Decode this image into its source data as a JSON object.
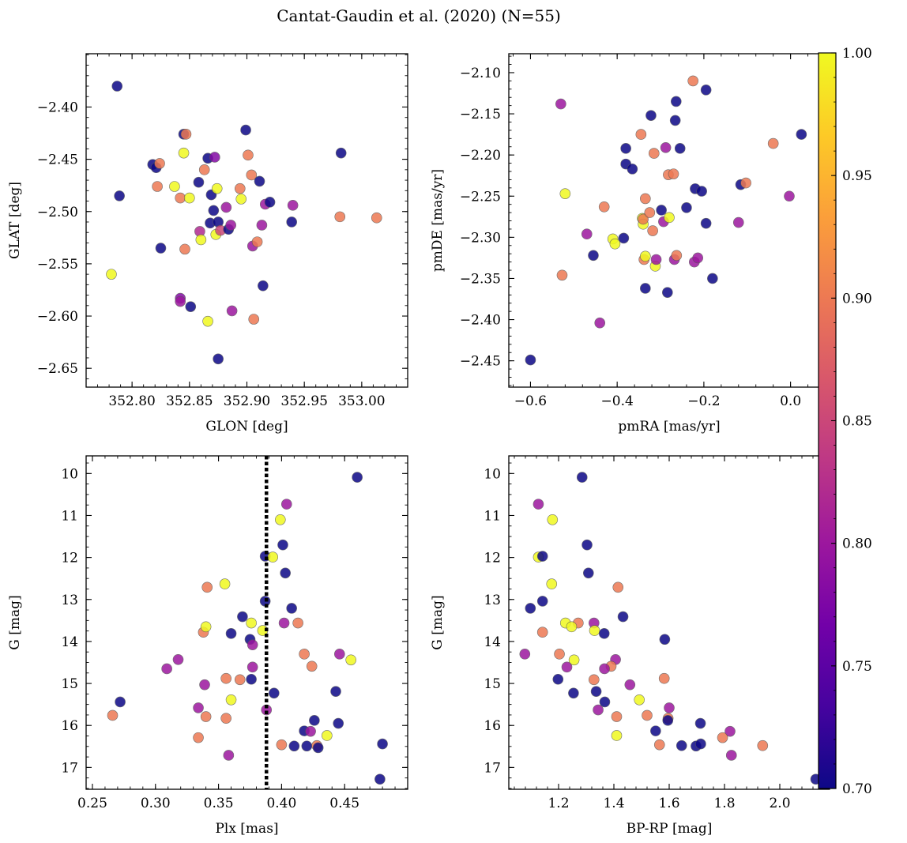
{
  "figure_title": "Cantat-Gaudin et al. (2020) (N=55)",
  "colorbar": {
    "colormap": "plasma",
    "range": [
      0.7,
      1.0
    ],
    "ticks": [
      "0.70",
      "0.75",
      "0.80",
      "0.85",
      "0.90",
      "0.95",
      "1.00"
    ],
    "colormap_stops": [
      "#0d0887",
      "#46039f",
      "#7201a8",
      "#9c179e",
      "#bd3786",
      "#d8576b",
      "#ed7953",
      "#fb9f3a",
      "#fdca26",
      "#f0f921"
    ]
  },
  "chart_data": [
    {
      "id": "glon_glat",
      "type": "scatter",
      "xlabel": "GLON [deg]",
      "ylabel": "GLAT [deg]",
      "xlim": [
        352.76,
        353.04
      ],
      "ylim": [
        -2.668,
        -2.349
      ],
      "xticks": [
        352.8,
        352.85,
        352.9,
        352.95,
        353.0
      ],
      "xtick_labels": [
        "352.80",
        "352.85",
        "352.90",
        "352.95",
        "353.00"
      ],
      "yticks": [
        -2.4,
        -2.45,
        -2.5,
        -2.55,
        -2.6,
        -2.65
      ],
      "ytick_labels": [
        "−2.40",
        "−2.45",
        "−2.50",
        "−2.55",
        "−2.60",
        "−2.65"
      ],
      "points": [
        [
          352.787,
          -2.38,
          0.7
        ],
        [
          352.789,
          -2.485,
          0.7
        ],
        [
          352.782,
          -2.56,
          1.0
        ],
        [
          352.818,
          -2.455,
          0.7
        ],
        [
          352.821,
          -2.458,
          0.7
        ],
        [
          352.822,
          -2.476,
          0.9
        ],
        [
          352.824,
          -2.454,
          0.9
        ],
        [
          352.825,
          -2.535,
          0.7
        ],
        [
          352.837,
          -2.476,
          1.0
        ],
        [
          352.842,
          -2.487,
          0.9
        ],
        [
          352.842,
          -2.583,
          0.78
        ],
        [
          352.842,
          -2.586,
          0.8
        ],
        [
          352.845,
          -2.426,
          0.7
        ],
        [
          352.845,
          -2.444,
          1.0
        ],
        [
          352.846,
          -2.536,
          0.9
        ],
        [
          352.847,
          -2.426,
          0.9
        ],
        [
          352.85,
          -2.487,
          1.0
        ],
        [
          352.851,
          -2.591,
          0.7
        ],
        [
          352.858,
          -2.472,
          0.7
        ],
        [
          352.859,
          -2.519,
          0.82
        ],
        [
          352.86,
          -2.527,
          1.0
        ],
        [
          352.863,
          -2.46,
          0.9
        ],
        [
          352.866,
          -2.449,
          0.7
        ],
        [
          352.866,
          -2.605,
          1.0
        ],
        [
          352.868,
          -2.511,
          0.7
        ],
        [
          352.869,
          -2.484,
          0.7
        ],
        [
          352.871,
          -2.499,
          0.7
        ],
        [
          352.872,
          -2.448,
          0.78
        ],
        [
          352.873,
          -2.522,
          1.0
        ],
        [
          352.874,
          -2.478,
          1.0
        ],
        [
          352.875,
          -2.51,
          0.7
        ],
        [
          352.875,
          -2.641,
          0.7
        ],
        [
          352.877,
          -2.518,
          0.85
        ],
        [
          352.882,
          -2.496,
          0.8
        ],
        [
          352.884,
          -2.517,
          0.7
        ],
        [
          352.886,
          -2.513,
          0.8
        ],
        [
          352.887,
          -2.595,
          0.8
        ],
        [
          352.894,
          -2.478,
          0.9
        ],
        [
          352.895,
          -2.488,
          1.0
        ],
        [
          352.899,
          -2.422,
          0.7
        ],
        [
          352.901,
          -2.446,
          0.9
        ],
        [
          352.904,
          -2.465,
          0.9
        ],
        [
          352.905,
          -2.533,
          0.8
        ],
        [
          352.906,
          -2.603,
          0.9
        ],
        [
          352.909,
          -2.529,
          0.9
        ],
        [
          352.911,
          -2.471,
          0.7
        ],
        [
          352.913,
          -2.513,
          0.8
        ],
        [
          352.914,
          -2.571,
          0.7
        ],
        [
          352.916,
          -2.493,
          0.8
        ],
        [
          352.92,
          -2.491,
          0.7
        ],
        [
          352.94,
          -2.494,
          0.8
        ],
        [
          352.939,
          -2.51,
          0.7
        ],
        [
          352.982,
          -2.444,
          0.7
        ],
        [
          352.981,
          -2.505,
          0.9
        ],
        [
          353.013,
          -2.506,
          0.9
        ]
      ]
    },
    {
      "id": "pmra_pmde",
      "type": "scatter",
      "xlabel": "pmRA [mas/yr]",
      "ylabel": "pmDE [mas/yr]",
      "xlim": [
        -0.65,
        0.09
      ],
      "ylim": [
        -2.482,
        -2.077
      ],
      "xticks": [
        -0.6,
        -0.4,
        -0.2,
        0.0
      ],
      "xtick_labels": [
        "−0.6",
        "−0.4",
        "−0.2",
        "0.0"
      ],
      "yticks": [
        -2.1,
        -2.15,
        -2.2,
        -2.25,
        -2.3,
        -2.35,
        -2.4,
        -2.45
      ],
      "ytick_labels": [
        "−2.10",
        "−2.15",
        "−2.20",
        "−2.25",
        "−2.30",
        "−2.35",
        "−2.40",
        "−2.45"
      ],
      "points": [
        [
          -0.6,
          -2.449,
          0.7
        ],
        [
          -0.53,
          -2.138,
          0.8
        ],
        [
          -0.527,
          -2.346,
          0.9
        ],
        [
          -0.52,
          -2.247,
          1.0
        ],
        [
          -0.47,
          -2.296,
          0.8
        ],
        [
          -0.455,
          -2.322,
          0.7
        ],
        [
          -0.44,
          -2.404,
          0.8
        ],
        [
          -0.43,
          -2.263,
          0.9
        ],
        [
          -0.41,
          -2.302,
          1.0
        ],
        [
          -0.405,
          -2.308,
          1.0
        ],
        [
          -0.385,
          -2.301,
          0.7
        ],
        [
          -0.38,
          -2.192,
          0.7
        ],
        [
          -0.38,
          -2.211,
          0.7
        ],
        [
          -0.365,
          -2.217,
          0.7
        ],
        [
          -0.345,
          -2.175,
          0.9
        ],
        [
          -0.342,
          -2.277,
          1.0
        ],
        [
          -0.34,
          -2.284,
          1.0
        ],
        [
          -0.34,
          -2.278,
          0.9
        ],
        [
          -0.338,
          -2.327,
          0.9
        ],
        [
          -0.335,
          -2.323,
          1.0
        ],
        [
          -0.335,
          -2.362,
          0.7
        ],
        [
          -0.335,
          -2.253,
          0.9
        ],
        [
          -0.325,
          -2.27,
          0.9
        ],
        [
          -0.322,
          -2.152,
          0.7
        ],
        [
          -0.318,
          -2.292,
          0.9
        ],
        [
          -0.315,
          -2.198,
          0.9
        ],
        [
          -0.312,
          -2.335,
          1.0
        ],
        [
          -0.31,
          -2.327,
          0.8
        ],
        [
          -0.298,
          -2.267,
          0.7
        ],
        [
          -0.293,
          -2.281,
          0.8
        ],
        [
          -0.288,
          -2.191,
          0.8
        ],
        [
          -0.284,
          -2.367,
          0.7
        ],
        [
          -0.282,
          -2.224,
          0.9
        ],
        [
          -0.28,
          -2.276,
          1.0
        ],
        [
          -0.27,
          -2.223,
          0.9
        ],
        [
          -0.268,
          -2.327,
          0.8
        ],
        [
          -0.266,
          -2.158,
          0.7
        ],
        [
          -0.264,
          -2.135,
          0.7
        ],
        [
          -0.263,
          -2.322,
          0.9
        ],
        [
          -0.255,
          -2.192,
          0.7
        ],
        [
          -0.24,
          -2.264,
          0.7
        ],
        [
          -0.225,
          -2.11,
          0.9
        ],
        [
          -0.222,
          -2.33,
          0.8
        ],
        [
          -0.22,
          -2.241,
          0.7
        ],
        [
          -0.214,
          -2.325,
          0.8
        ],
        [
          -0.205,
          -2.244,
          0.7
        ],
        [
          -0.195,
          -2.121,
          0.7
        ],
        [
          -0.195,
          -2.283,
          0.7
        ],
        [
          -0.18,
          -2.35,
          0.7
        ],
        [
          -0.12,
          -2.282,
          0.8
        ],
        [
          -0.115,
          -2.236,
          0.7
        ],
        [
          -0.103,
          -2.234,
          0.9
        ],
        [
          -0.04,
          -2.186,
          0.9
        ],
        [
          -0.003,
          -2.25,
          0.8
        ],
        [
          0.025,
          -2.175,
          0.7
        ]
      ]
    },
    {
      "id": "plx_g",
      "type": "scatter",
      "xlabel": "Plx [mas]",
      "ylabel": "G [mag]",
      "xlim": [
        0.245,
        0.5
      ],
      "ylim": [
        17.52,
        9.58
      ],
      "y_inverted": true,
      "vline": {
        "x": 0.388,
        "style": "dotted"
      },
      "xticks": [
        0.25,
        0.3,
        0.35,
        0.4,
        0.45
      ],
      "xtick_labels": [
        "0.25",
        "0.30",
        "0.35",
        "0.40",
        "0.45"
      ],
      "yticks": [
        10,
        11,
        12,
        13,
        14,
        15,
        16,
        17
      ],
      "ytick_labels": [
        "10",
        "11",
        "12",
        "13",
        "14",
        "15",
        "16",
        "17"
      ],
      "points": [
        [
          0.266,
          15.76,
          0.9
        ],
        [
          0.272,
          15.44,
          0.7
        ],
        [
          0.309,
          14.65,
          0.8
        ],
        [
          0.318,
          14.43,
          0.8
        ],
        [
          0.334,
          15.58,
          0.8
        ],
        [
          0.334,
          16.29,
          0.9
        ],
        [
          0.338,
          13.78,
          0.9
        ],
        [
          0.339,
          15.03,
          0.8
        ],
        [
          0.34,
          13.65,
          1.0
        ],
        [
          0.34,
          15.79,
          0.9
        ],
        [
          0.341,
          12.71,
          0.9
        ],
        [
          0.355,
          12.63,
          1.0
        ],
        [
          0.356,
          14.88,
          0.9
        ],
        [
          0.356,
          15.83,
          0.9
        ],
        [
          0.358,
          16.71,
          0.8
        ],
        [
          0.36,
          13.81,
          0.7
        ],
        [
          0.36,
          15.39,
          1.0
        ],
        [
          0.367,
          14.91,
          0.9
        ],
        [
          0.369,
          13.41,
          0.7
        ],
        [
          0.375,
          13.95,
          0.7
        ],
        [
          0.376,
          13.56,
          1.0
        ],
        [
          0.376,
          14.9,
          0.7
        ],
        [
          0.377,
          14.61,
          0.8
        ],
        [
          0.377,
          14.08,
          0.8
        ],
        [
          0.385,
          13.74,
          1.0
        ],
        [
          0.387,
          11.97,
          0.7
        ],
        [
          0.387,
          13.04,
          0.7
        ],
        [
          0.388,
          15.63,
          0.8
        ],
        [
          0.393,
          11.99,
          1.0
        ],
        [
          0.394,
          15.23,
          0.7
        ],
        [
          0.399,
          11.1,
          1.0
        ],
        [
          0.4,
          16.46,
          0.9
        ],
        [
          0.401,
          11.7,
          0.7
        ],
        [
          0.402,
          13.56,
          0.8
        ],
        [
          0.403,
          12.37,
          0.7
        ],
        [
          0.404,
          10.73,
          0.8
        ],
        [
          0.408,
          13.21,
          0.7
        ],
        [
          0.41,
          16.49,
          0.7
        ],
        [
          0.413,
          13.56,
          0.9
        ],
        [
          0.418,
          14.3,
          0.9
        ],
        [
          0.418,
          16.13,
          0.7
        ],
        [
          0.42,
          16.49,
          0.7
        ],
        [
          0.423,
          16.14,
          0.8
        ],
        [
          0.424,
          14.59,
          0.9
        ],
        [
          0.426,
          15.88,
          0.7
        ],
        [
          0.428,
          16.48,
          0.9
        ],
        [
          0.429,
          16.53,
          0.7
        ],
        [
          0.436,
          16.24,
          1.0
        ],
        [
          0.443,
          15.19,
          0.7
        ],
        [
          0.445,
          15.95,
          0.7
        ],
        [
          0.446,
          14.3,
          0.8
        ],
        [
          0.455,
          14.44,
          1.0
        ],
        [
          0.46,
          10.09,
          0.7
        ],
        [
          0.478,
          17.28,
          0.7
        ],
        [
          0.48,
          16.44,
          0.7
        ]
      ]
    },
    {
      "id": "bprp_g",
      "type": "scatter",
      "xlabel": "BP-RP [mag]",
      "ylabel": "G [mag]",
      "xlim": [
        1.02,
        2.18
      ],
      "ylim": [
        17.52,
        9.58
      ],
      "y_inverted": true,
      "xticks": [
        1.2,
        1.4,
        1.6,
        1.8,
        2.0
      ],
      "xtick_labels": [
        "1.2",
        "1.4",
        "1.6",
        "1.8",
        "2.0"
      ],
      "yticks": [
        10,
        11,
        12,
        13,
        14,
        15,
        16,
        17
      ],
      "ytick_labels": [
        "10",
        "11",
        "12",
        "13",
        "14",
        "15",
        "16",
        "17"
      ],
      "points": [
        [
          1.285,
          10.09,
          0.7
        ],
        [
          1.127,
          10.73,
          0.8
        ],
        [
          1.178,
          11.1,
          1.0
        ],
        [
          1.303,
          11.7,
          0.7
        ],
        [
          1.127,
          11.99,
          1.0
        ],
        [
          1.142,
          11.97,
          0.7
        ],
        [
          1.308,
          12.37,
          0.7
        ],
        [
          1.175,
          12.63,
          1.0
        ],
        [
          1.415,
          12.71,
          0.9
        ],
        [
          1.142,
          13.04,
          0.7
        ],
        [
          1.098,
          13.21,
          0.7
        ],
        [
          1.433,
          13.41,
          0.7
        ],
        [
          1.225,
          13.56,
          1.0
        ],
        [
          1.271,
          13.56,
          0.9
        ],
        [
          1.328,
          13.56,
          0.8
        ],
        [
          1.247,
          13.65,
          1.0
        ],
        [
          1.33,
          13.74,
          1.0
        ],
        [
          1.142,
          13.78,
          0.9
        ],
        [
          1.365,
          13.81,
          0.7
        ],
        [
          1.584,
          13.95,
          0.7
        ],
        [
          1.078,
          14.3,
          0.8
        ],
        [
          1.203,
          14.3,
          0.9
        ],
        [
          1.406,
          14.43,
          0.8
        ],
        [
          1.256,
          14.44,
          1.0
        ],
        [
          1.39,
          14.59,
          0.9
        ],
        [
          1.23,
          14.61,
          0.8
        ],
        [
          1.366,
          14.65,
          0.8
        ],
        [
          1.582,
          14.88,
          0.9
        ],
        [
          1.198,
          14.9,
          0.7
        ],
        [
          1.328,
          14.91,
          0.9
        ],
        [
          1.458,
          15.03,
          0.8
        ],
        [
          1.336,
          15.19,
          0.7
        ],
        [
          1.254,
          15.23,
          0.7
        ],
        [
          1.492,
          15.39,
          1.0
        ],
        [
          1.367,
          15.44,
          0.7
        ],
        [
          1.6,
          15.58,
          0.8
        ],
        [
          1.343,
          15.63,
          0.8
        ],
        [
          1.41,
          15.79,
          0.9
        ],
        [
          1.52,
          15.76,
          0.9
        ],
        [
          1.596,
          15.83,
          0.9
        ],
        [
          1.595,
          15.88,
          0.7
        ],
        [
          1.713,
          15.95,
          0.7
        ],
        [
          1.82,
          16.14,
          0.8
        ],
        [
          1.551,
          16.13,
          0.7
        ],
        [
          1.41,
          16.24,
          1.0
        ],
        [
          1.793,
          16.29,
          0.9
        ],
        [
          1.565,
          16.46,
          0.9
        ],
        [
          1.645,
          16.48,
          0.7
        ],
        [
          1.697,
          16.49,
          0.7
        ],
        [
          1.938,
          16.48,
          0.9
        ],
        [
          1.714,
          16.44,
          0.7
        ],
        [
          1.825,
          16.71,
          0.8
        ],
        [
          2.13,
          17.28,
          0.7
        ]
      ]
    }
  ]
}
